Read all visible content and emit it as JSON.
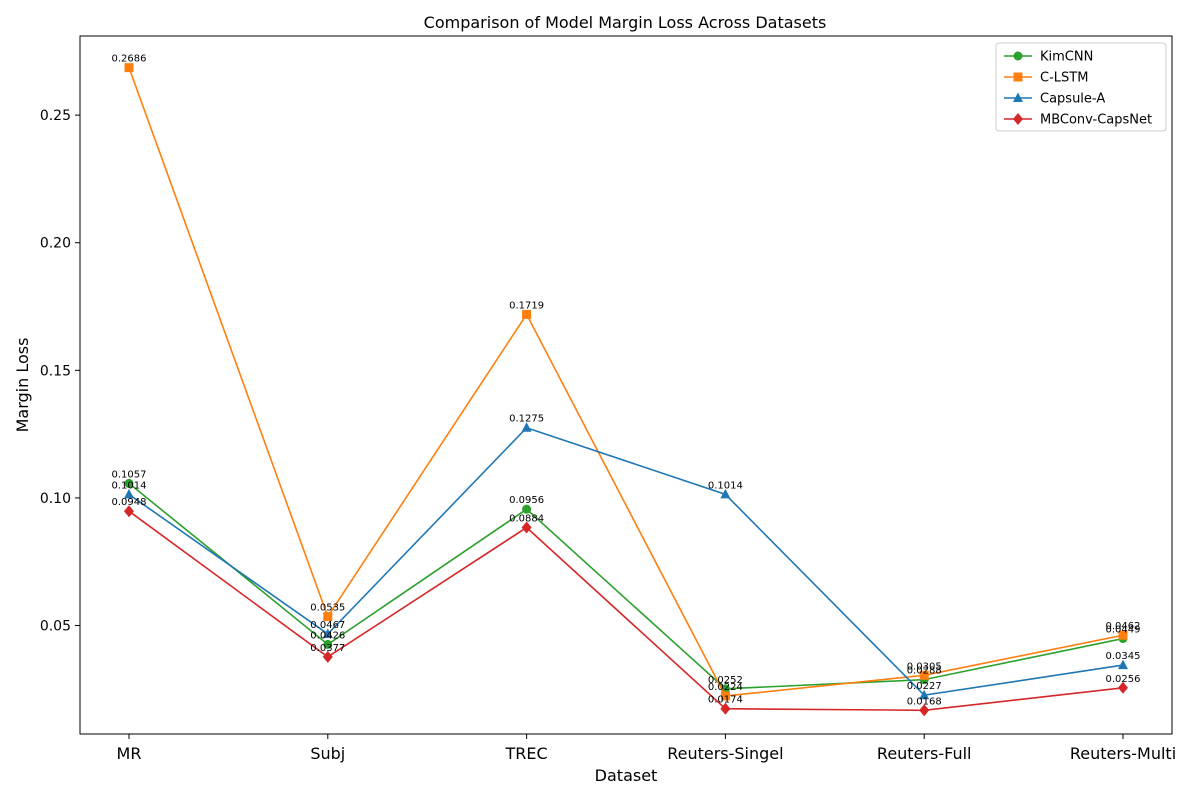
{
  "chart_data": {
    "type": "line",
    "title": "Comparison of Model Margin Loss Across Datasets",
    "xlabel": "Dataset",
    "ylabel": "Margin Loss",
    "categories": [
      "MR",
      "Subj",
      "TREC",
      "Reuters-Singel",
      "Reuters-Full",
      "Reuters-Multi"
    ],
    "ylim": [
      0.0075,
      0.281
    ],
    "yticks": [
      0.05,
      0.1,
      0.15,
      0.2,
      0.25
    ],
    "ytick_labels": [
      "0.05",
      "0.10",
      "0.15",
      "0.20",
      "0.25"
    ],
    "grid": false,
    "legend_position": "top-right",
    "series": [
      {
        "name": "KimCNN",
        "color": "#2ca02c",
        "marker": "circle",
        "values": [
          0.1057,
          0.0426,
          0.0956,
          0.0252,
          0.0288,
          0.0449
        ]
      },
      {
        "name": "C-LSTM",
        "color": "#ff7f0e",
        "marker": "square",
        "values": [
          0.2686,
          0.0535,
          0.1719,
          0.0224,
          0.0305,
          0.0462
        ]
      },
      {
        "name": "Capsule-A",
        "color": "#1f77b4",
        "marker": "triangle",
        "values": [
          0.1014,
          0.0467,
          0.1275,
          0.1014,
          0.0227,
          0.0345
        ]
      },
      {
        "name": "MBConv-CapsNet",
        "color": "#d62728",
        "marker": "diamond",
        "values": [
          0.0948,
          0.0377,
          0.0884,
          0.0174,
          0.0168,
          0.0256
        ]
      }
    ],
    "data_labels": [
      [
        "0.1057",
        "0.0426",
        "0.0956",
        "0.0252",
        "0.0288",
        "0.0449"
      ],
      [
        "0.2686",
        "0.0535",
        "0.1719",
        "0.0224",
        "0.0305",
        "0.0462"
      ],
      [
        "0.1014",
        "0.0467",
        "0.1275",
        "0.1014",
        "0.0227",
        "0.0345"
      ],
      [
        "0.0948",
        "0.0377",
        "0.0884",
        "0.0174",
        "0.0168",
        "0.0256"
      ]
    ]
  }
}
